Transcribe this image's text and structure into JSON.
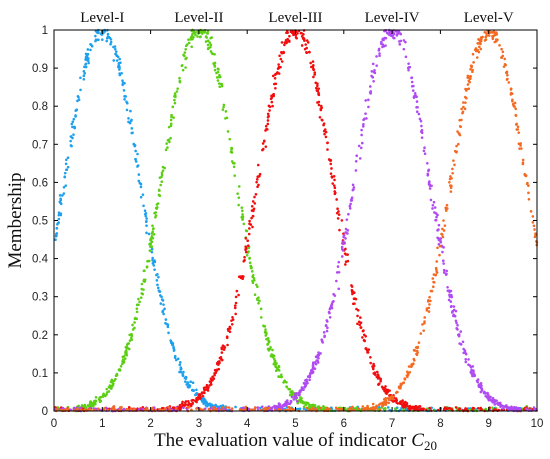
{
  "chart_data": {
    "type": "scatter",
    "xlabel": "The evaluation value of indicator",
    "xlabel_symbol": "C",
    "xlabel_subscript": "20",
    "ylabel": "Membership",
    "xlim": [
      0,
      10
    ],
    "ylim": [
      0,
      1
    ],
    "x_ticks": [
      "0",
      "1",
      "2",
      "3",
      "4",
      "5",
      "6",
      "7",
      "8",
      "9",
      "10"
    ],
    "y_ticks": [
      "0",
      "0.1",
      "0.2",
      "0.3",
      "0.4",
      "0.5",
      "0.6",
      "0.7",
      "0.8",
      "0.9",
      "1"
    ],
    "grid": false,
    "series": [
      {
        "name": "Level-I",
        "color": "#1ea0ee",
        "center": 1,
        "spread": 1.1,
        "points": 900
      },
      {
        "name": "Level-II",
        "color": "#5ccf14",
        "center": 3,
        "spread": 1.1,
        "points": 1000
      },
      {
        "name": "Level-III",
        "color": "#f20e0e",
        "center": 5,
        "spread": 1.1,
        "points": 1000
      },
      {
        "name": "Level-IV",
        "color": "#b04af2",
        "center": 7,
        "spread": 1.1,
        "points": 1000
      },
      {
        "name": "Level-V",
        "color": "#f56a22",
        "center": 9,
        "spread": 1.1,
        "points": 900
      }
    ]
  }
}
